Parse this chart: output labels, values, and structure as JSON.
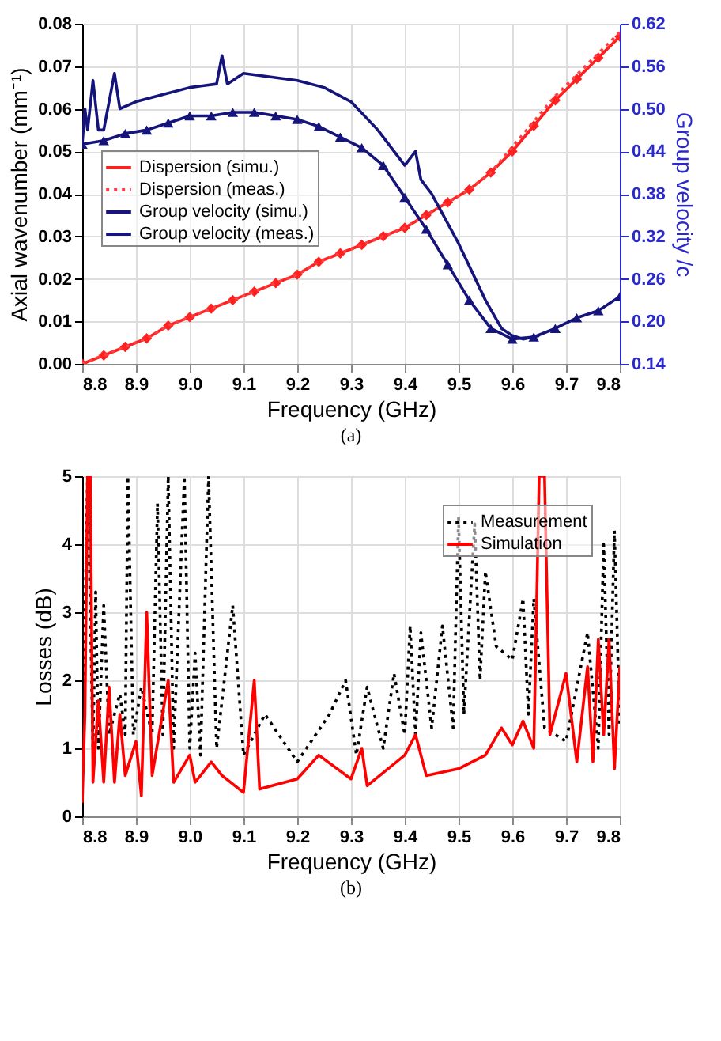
{
  "chart_data": [
    {
      "type": "line",
      "xlabel": "Frequency (GHz)",
      "ylabel": "Axial wavenumber (mm⁻¹)",
      "y2label": "Group velocity /c",
      "annotations": [
        "(a)"
      ],
      "xlim": [
        8.8,
        9.8
      ],
      "xticks": [
        8.8,
        8.9,
        {
          "value": 9,
          "label": "9.0"
        },
        9.1,
        9.2,
        9.3,
        9.4,
        9.5,
        9.6,
        9.7,
        9.8
      ],
      "ylim": [
        0,
        0.08
      ],
      "yticks": [
        {
          "value": 0,
          "label": "0.00"
        },
        0.01,
        0.02,
        0.03,
        0.04,
        0.05,
        0.06,
        0.07,
        0.08
      ],
      "y2lim": [
        0.14,
        0.62
      ],
      "y2ticks": [
        0.14,
        {
          "value": 0.2,
          "label": "0.20"
        },
        0.26,
        0.32,
        0.38,
        0.44,
        {
          "value": 0.5,
          "label": "0.50"
        },
        0.56,
        0.62
      ],
      "grid": true,
      "legend": "left",
      "series": [
        {
          "name": "Dispersion (simu.)",
          "color": "#ff2020",
          "marker": "diamond",
          "line_style": "solid",
          "x": [
            8.8,
            8.84,
            8.88,
            8.92,
            8.96,
            9.0,
            9.04,
            9.08,
            9.12,
            9.16,
            9.2,
            9.24,
            9.28,
            9.32,
            9.36,
            9.4,
            9.44,
            9.48,
            9.52,
            9.56,
            9.6,
            9.64,
            9.68,
            9.72,
            9.76,
            9.8
          ],
          "values": [
            0.0,
            0.002,
            0.004,
            0.006,
            0.009,
            0.011,
            0.013,
            0.015,
            0.017,
            0.019,
            0.021,
            0.024,
            0.026,
            0.028,
            0.03,
            0.032,
            0.035,
            0.038,
            0.041,
            0.045,
            0.05,
            0.056,
            0.062,
            0.067,
            0.072,
            0.077
          ]
        },
        {
          "name": "Dispersion (meas.)",
          "color": "#ff4040",
          "marker": "none",
          "line_style": "dotted",
          "x": [
            8.8,
            8.84,
            8.88,
            8.92,
            8.96,
            9.0,
            9.04,
            9.08,
            9.12,
            9.16,
            9.2,
            9.24,
            9.28,
            9.32,
            9.36,
            9.4,
            9.44,
            9.48,
            9.52,
            9.56,
            9.6,
            9.64,
            9.68,
            9.72,
            9.76,
            9.8
          ],
          "values": [
            0.0,
            0.002,
            0.004,
            0.006,
            0.009,
            0.011,
            0.013,
            0.015,
            0.017,
            0.019,
            0.021,
            0.024,
            0.026,
            0.028,
            0.03,
            0.032,
            0.035,
            0.038,
            0.041,
            0.045,
            0.051,
            0.057,
            0.063,
            0.068,
            0.073,
            0.078
          ]
        },
        {
          "name": "Group velocity (simu.)",
          "color": "#14147a",
          "marker": "triangle",
          "line_style": "solid",
          "axis": "y2",
          "x": [
            8.8,
            8.84,
            8.88,
            8.92,
            8.96,
            9.0,
            9.04,
            9.08,
            9.12,
            9.16,
            9.2,
            9.24,
            9.28,
            9.32,
            9.36,
            9.4,
            9.44,
            9.48,
            9.52,
            9.56,
            9.6,
            9.64,
            9.68,
            9.72,
            9.76,
            9.8
          ],
          "values": [
            0.45,
            0.455,
            0.465,
            0.47,
            0.48,
            0.49,
            0.49,
            0.495,
            0.495,
            0.49,
            0.485,
            0.475,
            0.46,
            0.445,
            0.42,
            0.375,
            0.33,
            0.28,
            0.23,
            0.19,
            0.175,
            0.178,
            0.19,
            0.205,
            0.215,
            0.235
          ]
        },
        {
          "name": "Group velocity (meas.)",
          "color": "#14147a",
          "marker": "none",
          "line_style": "solid",
          "axis": "y2",
          "x": [
            8.8,
            8.805,
            8.81,
            8.82,
            8.83,
            8.84,
            8.86,
            8.87,
            8.9,
            8.95,
            9.0,
            9.05,
            9.06,
            9.07,
            9.1,
            9.15,
            9.2,
            9.25,
            9.3,
            9.35,
            9.4,
            9.42,
            9.43,
            9.45,
            9.5,
            9.55,
            9.58,
            9.6,
            9.62,
            9.65
          ],
          "values": [
            0.45,
            0.5,
            0.47,
            0.54,
            0.47,
            0.47,
            0.55,
            0.5,
            0.51,
            0.52,
            0.53,
            0.535,
            0.575,
            0.535,
            0.55,
            0.545,
            0.54,
            0.53,
            0.51,
            0.47,
            0.42,
            0.44,
            0.4,
            0.38,
            0.31,
            0.23,
            0.19,
            0.18,
            0.175,
            0.18
          ]
        }
      ]
    },
    {
      "type": "line",
      "xlabel": "Frequency (GHz)",
      "ylabel": "Losses (dB)",
      "annotations": [
        "(b)"
      ],
      "xlim": [
        8.8,
        9.8
      ],
      "xticks": [
        8.8,
        8.9,
        {
          "value": 9,
          "label": "9.0"
        },
        9.1,
        9.2,
        9.3,
        9.4,
        9.5,
        9.6,
        9.7,
        9.8
      ],
      "ylim": [
        0,
        5
      ],
      "yticks": [
        0,
        1,
        2,
        3,
        4,
        5
      ],
      "grid": true,
      "legend": "top right",
      "series": [
        {
          "name": "Measurement",
          "color": "#000000",
          "line_style": "dotted",
          "x": [
            8.8,
            8.81,
            8.82,
            8.825,
            8.83,
            8.84,
            8.85,
            8.87,
            8.88,
            8.885,
            8.895,
            8.91,
            8.93,
            8.94,
            8.95,
            8.96,
            8.97,
            8.99,
            9.0,
            9.01,
            9.02,
            9.035,
            9.05,
            9.08,
            9.1,
            9.14,
            9.2,
            9.26,
            9.29,
            9.31,
            9.33,
            9.36,
            9.38,
            9.4,
            9.41,
            9.42,
            9.43,
            9.45,
            9.47,
            9.49,
            9.5,
            9.51,
            9.53,
            9.54,
            9.55,
            9.57,
            9.6,
            9.62,
            9.63,
            9.64,
            9.66,
            9.7,
            9.74,
            9.76,
            9.77,
            9.78,
            9.79,
            9.8
          ],
          "values": [
            0.8,
            5,
            1.0,
            3.3,
            1.0,
            3.1,
            1.2,
            1.8,
            1.2,
            5,
            1.2,
            1.9,
            1.2,
            4.6,
            1.2,
            5,
            1.0,
            5,
            1.0,
            2.4,
            0.9,
            5,
            1.0,
            3.1,
            0.9,
            1.5,
            0.8,
            1.5,
            2.0,
            0.9,
            1.9,
            1.0,
            2.1,
            1.2,
            2.8,
            1.2,
            2.7,
            1.3,
            2.8,
            1.3,
            4.4,
            1.5,
            4.3,
            2.0,
            3.6,
            2.5,
            2.3,
            3.2,
            1.5,
            3.2,
            1.3,
            1.1,
            2.7,
            1.0,
            4.0,
            1.2,
            4.2,
            1.3
          ]
        },
        {
          "name": "Simulation",
          "color": "#ff0000",
          "line_style": "solid",
          "x": [
            8.8,
            8.805,
            8.81,
            8.815,
            8.82,
            8.83,
            8.84,
            8.85,
            8.86,
            8.87,
            8.88,
            8.9,
            8.91,
            8.92,
            8.93,
            8.96,
            8.97,
            9.0,
            9.01,
            9.04,
            9.06,
            9.1,
            9.12,
            9.13,
            9.2,
            9.24,
            9.3,
            9.32,
            9.33,
            9.4,
            9.42,
            9.44,
            9.5,
            9.55,
            9.58,
            9.6,
            9.62,
            9.64,
            9.65,
            9.66,
            9.67,
            9.7,
            9.72,
            9.74,
            9.75,
            9.76,
            9.77,
            9.78,
            9.79,
            9.8
          ],
          "values": [
            0.2,
            1.5,
            5,
            5,
            0.5,
            1.7,
            0.5,
            1.9,
            0.5,
            1.5,
            0.6,
            1.1,
            0.3,
            3.0,
            0.6,
            2.0,
            0.5,
            0.9,
            0.5,
            0.8,
            0.6,
            0.35,
            2.0,
            0.4,
            0.55,
            0.9,
            0.55,
            1.0,
            0.45,
            0.9,
            1.2,
            0.6,
            0.7,
            0.9,
            1.3,
            1.05,
            1.4,
            1.0,
            5,
            5,
            1.2,
            2.1,
            0.8,
            2.2,
            0.8,
            2.6,
            1.2,
            2.6,
            0.7,
            2.2
          ]
        }
      ]
    }
  ]
}
